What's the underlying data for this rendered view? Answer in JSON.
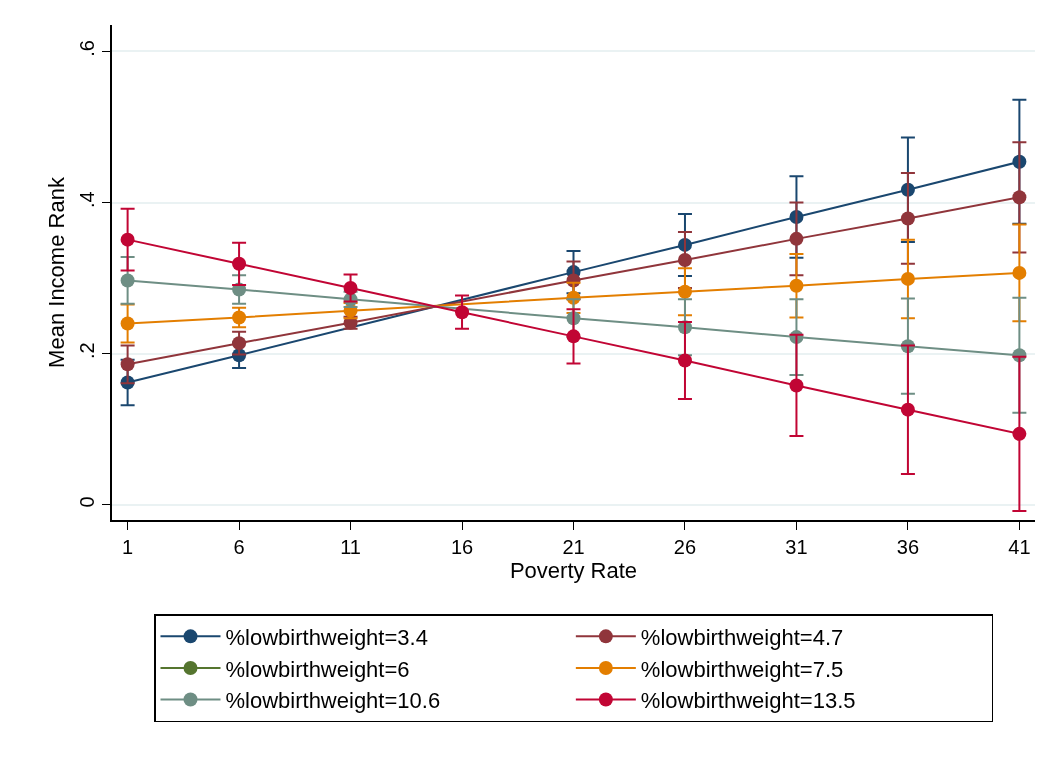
{
  "chart_data": {
    "type": "line",
    "xlabel": "Poverty Rate",
    "ylabel": "Mean Income Rank",
    "x": [
      1,
      6,
      11,
      16,
      21,
      26,
      31,
      36,
      41
    ],
    "xlim": [
      0.3,
      41.7
    ],
    "xticks": [
      1,
      6,
      11,
      16,
      21,
      26,
      31,
      36,
      41
    ],
    "ylim": [
      -0.02,
      0.635
    ],
    "yticks": [
      {
        "value": 0,
        "label": "0"
      },
      {
        "value": 0.2,
        "label": ".2"
      },
      {
        "value": 0.4,
        "label": ".4"
      },
      {
        "value": 0.6,
        "label": ".6"
      }
    ],
    "grid": "y",
    "legend": "bottom",
    "marker": "circle",
    "line_style": "solid",
    "series": [
      {
        "name": "%lowbirthweight=3.4",
        "color": "#1a476f",
        "values": [
          0.162,
          0.198,
          null,
          null,
          0.308,
          0.344,
          0.381,
          0.417,
          0.454
        ],
        "errors": [
          0.03,
          0.017,
          null,
          null,
          0.028,
          0.041,
          0.054,
          0.069,
          0.082
        ]
      },
      {
        "name": "%lowbirthweight=4.7",
        "color": "#90353b",
        "values": [
          0.186,
          0.214,
          0.241,
          null,
          0.297,
          0.324,
          0.352,
          0.379,
          0.407
        ],
        "errors": [
          0.025,
          0.015,
          0.008,
          null,
          0.025,
          0.037,
          0.048,
          0.06,
          0.073
        ]
      },
      {
        "name": "%lowbirthweight=6",
        "color": "#55752f",
        "values": [
          null,
          null,
          null,
          null,
          null,
          null,
          null,
          null,
          null
        ]
      },
      {
        "name": "%lowbirthweight=7.5",
        "color": "#e37e00",
        "values": [
          0.24,
          0.248,
          0.257,
          null,
          0.274,
          0.282,
          0.29,
          0.299,
          0.307
        ],
        "errors": [
          0.025,
          0.013,
          0.01,
          null,
          0.02,
          0.031,
          0.042,
          0.052,
          0.064
        ]
      },
      {
        "name": "%lowbirthweight=10.6",
        "color": "#6e8e84",
        "values": [
          0.297,
          0.285,
          0.272,
          null,
          0.247,
          0.235,
          0.222,
          0.21,
          0.198
        ],
        "errors": [
          0.031,
          0.019,
          0.01,
          null,
          0.025,
          0.037,
          0.05,
          0.063,
          0.076
        ]
      },
      {
        "name": "%lowbirthweight=13.5",
        "color": "#c10534",
        "values": [
          0.351,
          0.319,
          0.287,
          0.255,
          0.223,
          0.191,
          0.158,
          0.126,
          0.094
        ],
        "errors": [
          0.041,
          0.028,
          0.018,
          0.022,
          0.036,
          0.051,
          0.067,
          0.085,
          0.102
        ]
      }
    ]
  }
}
